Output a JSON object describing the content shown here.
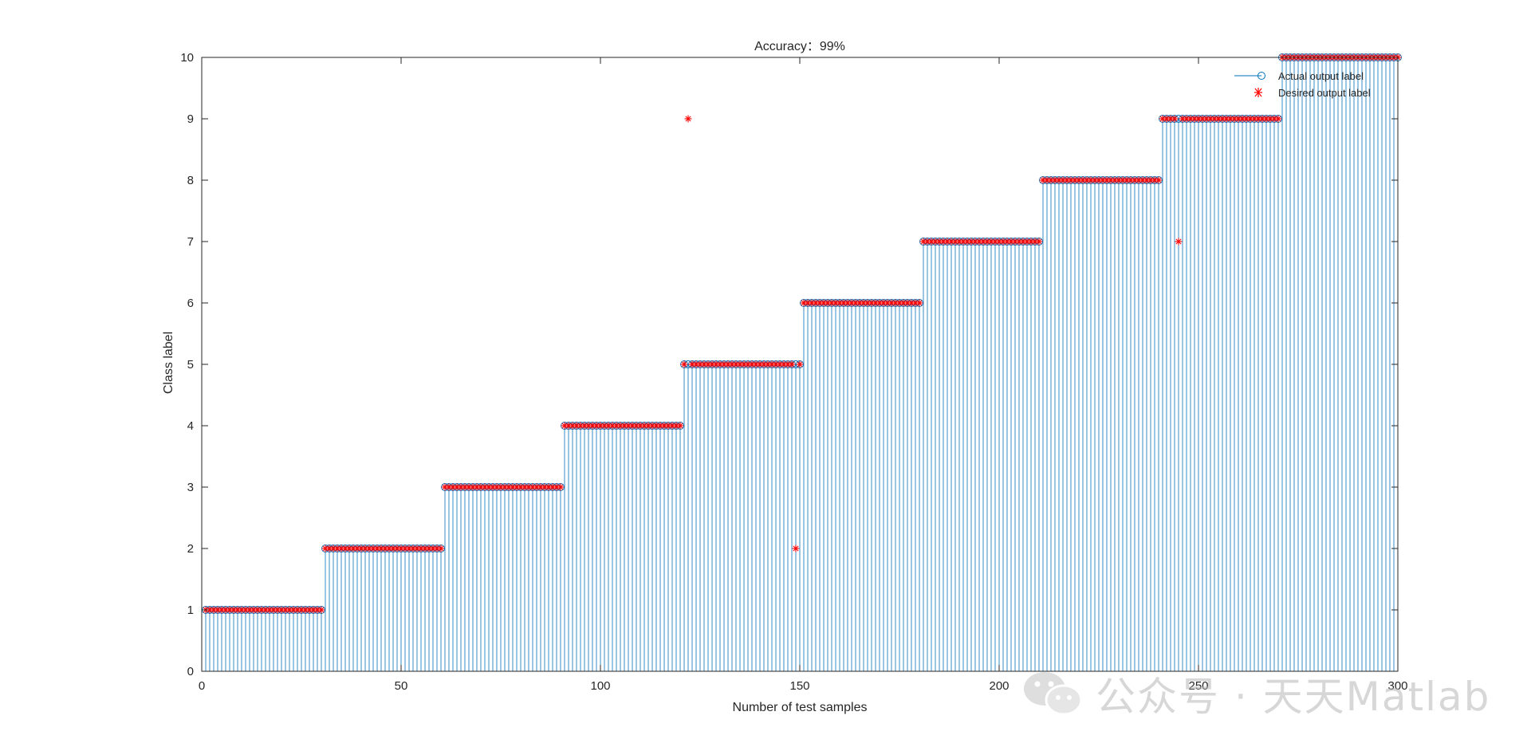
{
  "chart_data": {
    "type": "stem",
    "title": "Accuracy：99%",
    "xlabel": "Number of test samples",
    "ylabel": "Class label",
    "xlim": [
      0,
      300
    ],
    "ylim": [
      0,
      10
    ],
    "xticks": [
      0,
      50,
      100,
      150,
      200,
      250,
      300
    ],
    "yticks": [
      0,
      1,
      2,
      3,
      4,
      5,
      6,
      7,
      8,
      9,
      10
    ],
    "legend_position": "top-right",
    "samples_per_class": 30,
    "num_classes": 10,
    "series": [
      {
        "name": "Actual output label",
        "style": "stem-circle",
        "color": "#0072BD",
        "description": "class k for samples 30(k-1)+1 .. 30k"
      },
      {
        "name": "Desired output label",
        "style": "asterisk",
        "color": "#FF0000"
      }
    ],
    "misclassified": [
      {
        "x": 122,
        "actual": 5,
        "desired": 9
      },
      {
        "x": 149,
        "actual": 5,
        "desired": 2
      },
      {
        "x": 245,
        "actual": 9,
        "desired": 7
      }
    ]
  },
  "watermark": {
    "text": "公众号 · 天天Matlab",
    "icon": "wechat-icon"
  }
}
